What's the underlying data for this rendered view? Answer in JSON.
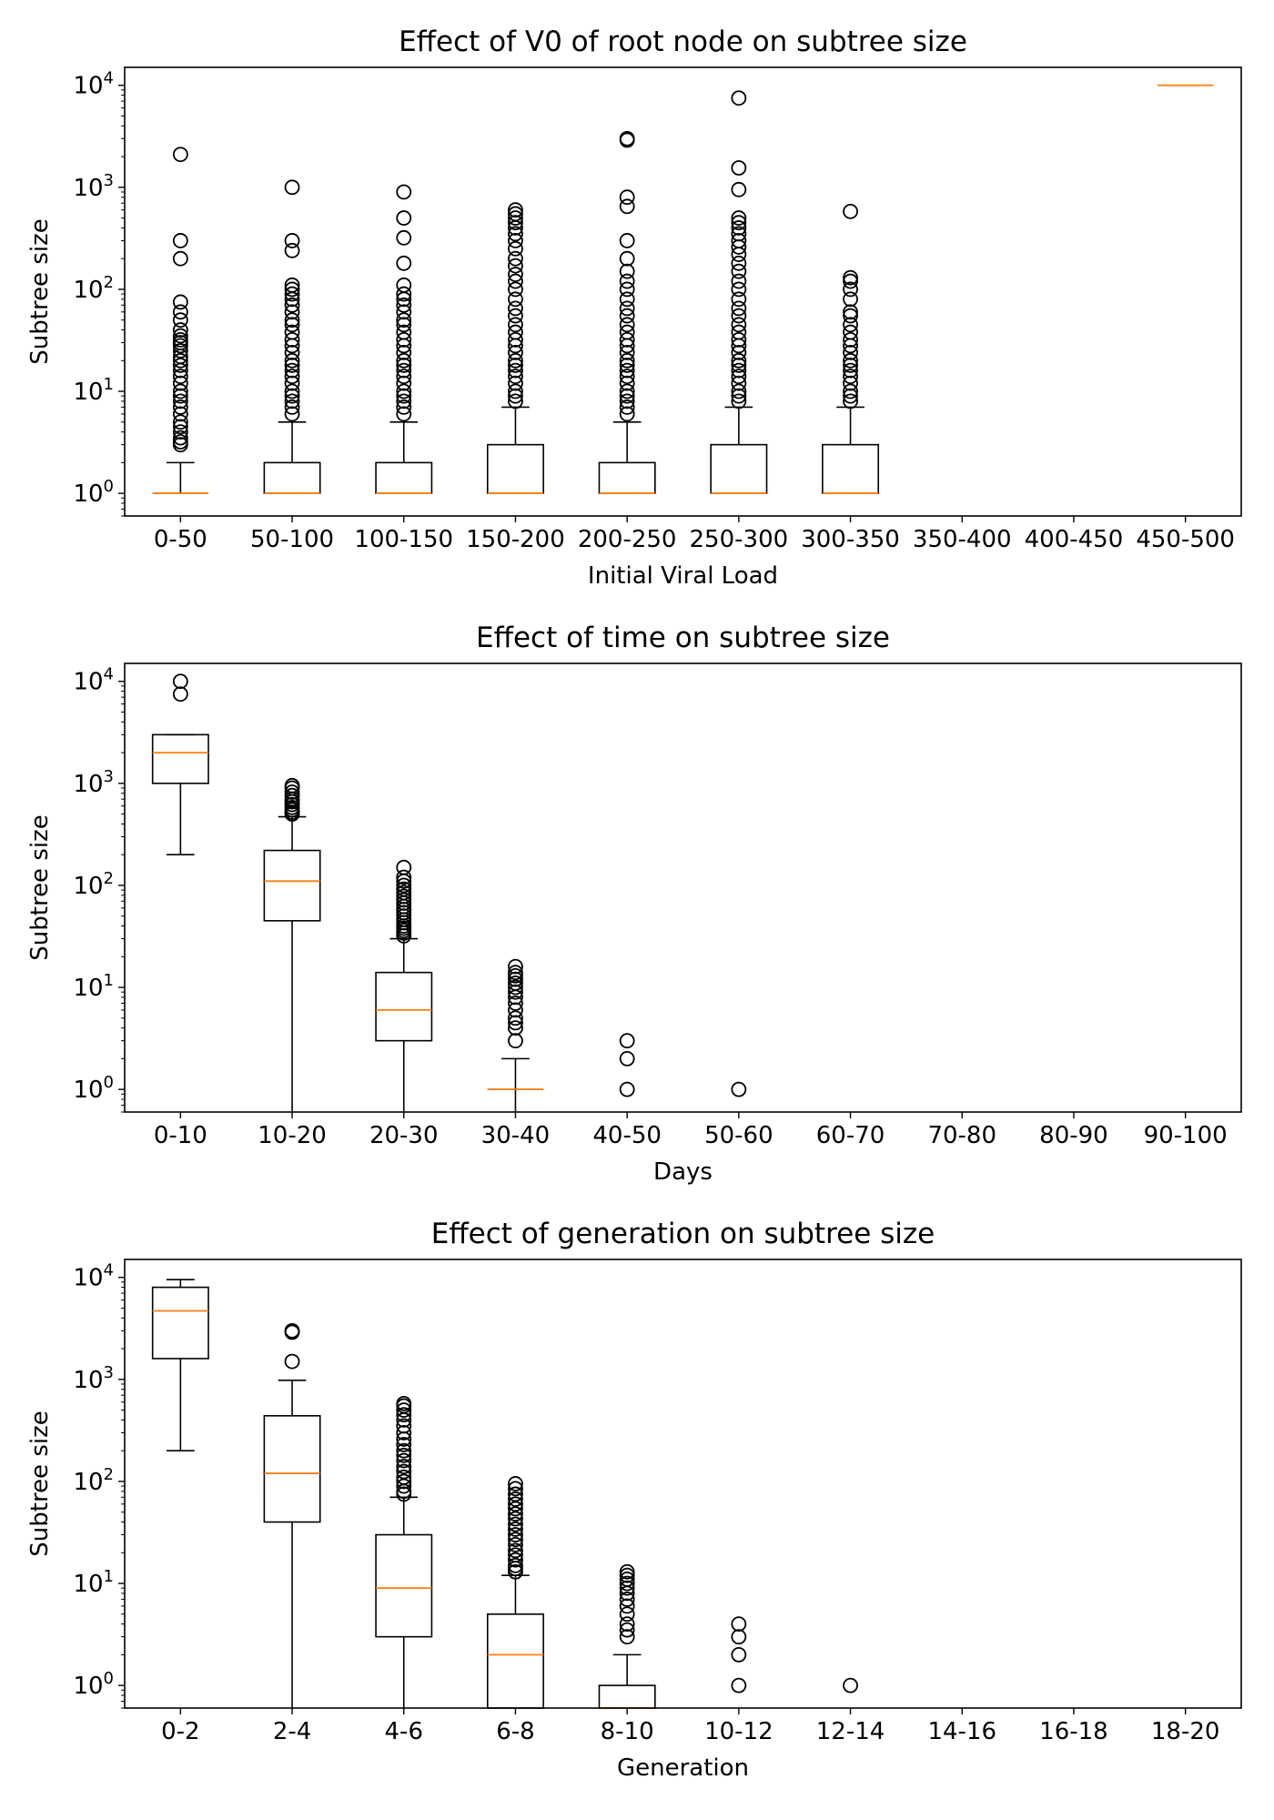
{
  "chart_data": [
    {
      "type": "box",
      "title": "Effect of V0 of root node on subtree size",
      "xlabel": "Initial Viral Load",
      "ylabel": "Subtree size",
      "yscale": "log",
      "ylim": [
        0.6,
        15000
      ],
      "yticks": [
        1,
        10,
        100,
        1000,
        10000
      ],
      "ytick_labels": [
        {
          "base": "10",
          "exp": "0"
        },
        {
          "base": "10",
          "exp": "1"
        },
        {
          "base": "10",
          "exp": "2"
        },
        {
          "base": "10",
          "exp": "3"
        },
        {
          "base": "10",
          "exp": "4"
        }
      ],
      "categories": [
        "0-50",
        "50-100",
        "100-150",
        "150-200",
        "200-250",
        "250-300",
        "300-350",
        "350-400",
        "400-450",
        "450-500"
      ],
      "boxes": [
        {
          "q1": 1,
          "median": 1,
          "q3": 1,
          "whislo": 1,
          "whishi": 2,
          "fliers": [
            3,
            3.2,
            3.5,
            4,
            4.5,
            5,
            6,
            7,
            8,
            9,
            10,
            12,
            14,
            16,
            18,
            20,
            22,
            25,
            28,
            30,
            32,
            35,
            40,
            50,
            60,
            75,
            200,
            300,
            2100
          ]
        },
        {
          "q1": 1,
          "median": 1,
          "q3": 2,
          "whislo": 1,
          "whishi": 5,
          "fliers": [
            6,
            7,
            8,
            9,
            10,
            12,
            14,
            16,
            18,
            20,
            24,
            28,
            32,
            38,
            45,
            50,
            60,
            70,
            80,
            90,
            100,
            110,
            240,
            300,
            1000
          ]
        },
        {
          "q1": 1,
          "median": 1,
          "q3": 2,
          "whislo": 1,
          "whishi": 5,
          "fliers": [
            6,
            7,
            8,
            9,
            10,
            12,
            14,
            16,
            18,
            20,
            24,
            28,
            32,
            38,
            45,
            50,
            60,
            70,
            80,
            90,
            110,
            180,
            320,
            500,
            900
          ]
        },
        {
          "q1": 1,
          "median": 1,
          "q3": 3,
          "whislo": 1,
          "whishi": 7,
          "fliers": [
            8,
            9,
            10,
            12,
            14,
            16,
            18,
            20,
            24,
            28,
            32,
            38,
            45,
            55,
            65,
            80,
            100,
            120,
            140,
            170,
            200,
            250,
            300,
            350,
            400,
            450,
            500,
            550,
            600
          ]
        },
        {
          "q1": 1,
          "median": 1,
          "q3": 2,
          "whislo": 1,
          "whishi": 5,
          "fliers": [
            6,
            7,
            8,
            9,
            10,
            12,
            14,
            16,
            18,
            20,
            24,
            28,
            32,
            38,
            45,
            55,
            65,
            80,
            100,
            120,
            150,
            200,
            300,
            650,
            800,
            2900,
            3000
          ]
        },
        {
          "q1": 1,
          "median": 1,
          "q3": 3,
          "whislo": 1,
          "whishi": 7,
          "fliers": [
            8,
            9,
            10,
            12,
            14,
            16,
            18,
            20,
            24,
            28,
            32,
            38,
            45,
            55,
            65,
            80,
            100,
            120,
            150,
            180,
            220,
            260,
            300,
            350,
            400,
            450,
            500,
            950,
            1550,
            7500
          ]
        },
        {
          "q1": 1,
          "median": 1,
          "q3": 3,
          "whislo": 1,
          "whishi": 7,
          "fliers": [
            8,
            9,
            10,
            12,
            14,
            16,
            18,
            20,
            24,
            28,
            32,
            38,
            45,
            55,
            60,
            80,
            100,
            120,
            130,
            580
          ]
        },
        null,
        null,
        {
          "q1": 10000,
          "median": 10000,
          "q3": 10000,
          "whislo": 10000,
          "whishi": 10000,
          "fliers": []
        }
      ]
    },
    {
      "type": "box",
      "title": "Effect of time on subtree size",
      "xlabel": "Days",
      "ylabel": "Subtree size",
      "yscale": "log",
      "ylim": [
        0.6,
        15000
      ],
      "yticks": [
        1,
        10,
        100,
        1000,
        10000
      ],
      "ytick_labels": [
        {
          "base": "10",
          "exp": "0"
        },
        {
          "base": "10",
          "exp": "1"
        },
        {
          "base": "10",
          "exp": "2"
        },
        {
          "base": "10",
          "exp": "3"
        },
        {
          "base": "10",
          "exp": "4"
        }
      ],
      "categories": [
        "0-10",
        "10-20",
        "20-30",
        "30-40",
        "40-50",
        "50-60",
        "60-70",
        "70-80",
        "80-90",
        "90-100"
      ],
      "boxes": [
        {
          "q1": 1000,
          "median": 2000,
          "q3": 3000,
          "whislo": 200,
          "whishi": 3000,
          "fliers": [
            7500,
            10000
          ]
        },
        {
          "q1": 45,
          "median": 110,
          "q3": 220,
          "whislo": 0.5,
          "whishi": 470,
          "fliers": [
            500,
            520,
            550,
            580,
            620,
            660,
            700,
            760,
            820,
            900,
            950
          ]
        },
        {
          "q1": 3,
          "median": 6,
          "q3": 14,
          "whislo": 0.5,
          "whishi": 30,
          "fliers": [
            32,
            34,
            36,
            38,
            40,
            43,
            46,
            50,
            54,
            58,
            62,
            67,
            72,
            78,
            85,
            92,
            100,
            110,
            120,
            150
          ]
        },
        {
          "q1": 1,
          "median": 1,
          "q3": 1,
          "whislo": 0.5,
          "whishi": 2,
          "fliers": [
            3,
            4,
            4.5,
            5,
            6,
            7,
            8,
            9,
            10,
            11,
            12,
            13,
            14,
            16
          ]
        },
        {
          "q1": null,
          "median": null,
          "q3": null,
          "whislo": null,
          "whishi": null,
          "fliers": [
            1,
            2,
            3
          ]
        },
        {
          "q1": null,
          "median": null,
          "q3": null,
          "whislo": null,
          "whishi": null,
          "fliers": [
            1
          ]
        },
        null,
        null,
        null,
        null
      ]
    },
    {
      "type": "box",
      "title": "Effect of generation on subtree size",
      "xlabel": "Generation",
      "ylabel": "Subtree size",
      "yscale": "log",
      "ylim": [
        0.6,
        15000
      ],
      "yticks": [
        1,
        10,
        100,
        1000,
        10000
      ],
      "ytick_labels": [
        {
          "base": "10",
          "exp": "0"
        },
        {
          "base": "10",
          "exp": "1"
        },
        {
          "base": "10",
          "exp": "2"
        },
        {
          "base": "10",
          "exp": "3"
        },
        {
          "base": "10",
          "exp": "4"
        }
      ],
      "categories": [
        "0-2",
        "2-4",
        "4-6",
        "6-8",
        "8-10",
        "10-12",
        "12-14",
        "14-16",
        "16-18",
        "18-20"
      ],
      "boxes": [
        {
          "q1": 1600,
          "median": 4700,
          "q3": 8000,
          "whislo": 200,
          "whishi": 9500,
          "fliers": []
        },
        {
          "q1": 40,
          "median": 120,
          "q3": 440,
          "whislo": 0.5,
          "whishi": 980,
          "fliers": [
            1500,
            2900,
            3000
          ]
        },
        {
          "q1": 3,
          "median": 9,
          "q3": 30,
          "whislo": 0.5,
          "whishi": 70,
          "fliers": [
            75,
            80,
            90,
            100,
            110,
            125,
            140,
            160,
            180,
            200,
            230,
            260,
            300,
            350,
            400,
            450,
            500,
            550,
            580
          ]
        },
        {
          "q1": 0.5,
          "median": 2,
          "q3": 5,
          "whislo": 0.5,
          "whishi": 12,
          "fliers": [
            13,
            14,
            15,
            17,
            19,
            21,
            24,
            27,
            30,
            34,
            38,
            43,
            48,
            54,
            60,
            67,
            75,
            85,
            95
          ]
        },
        {
          "q1": 0.5,
          "median": 0.5,
          "q3": 1,
          "whislo": 0.5,
          "whishi": 2,
          "fliers": [
            3,
            3.5,
            4,
            5,
            6,
            7,
            8,
            9,
            10,
            11,
            12,
            13
          ]
        },
        {
          "q1": null,
          "median": null,
          "q3": null,
          "whislo": null,
          "whishi": null,
          "fliers": [
            1,
            2,
            3,
            4
          ]
        },
        {
          "q1": null,
          "median": null,
          "q3": null,
          "whislo": null,
          "whishi": null,
          "fliers": [
            1
          ]
        },
        null,
        null,
        null
      ]
    }
  ],
  "colors": {
    "median": "#ff7f0e",
    "box": "#000000",
    "flier_edge": "#000000",
    "background": "#ffffff"
  }
}
